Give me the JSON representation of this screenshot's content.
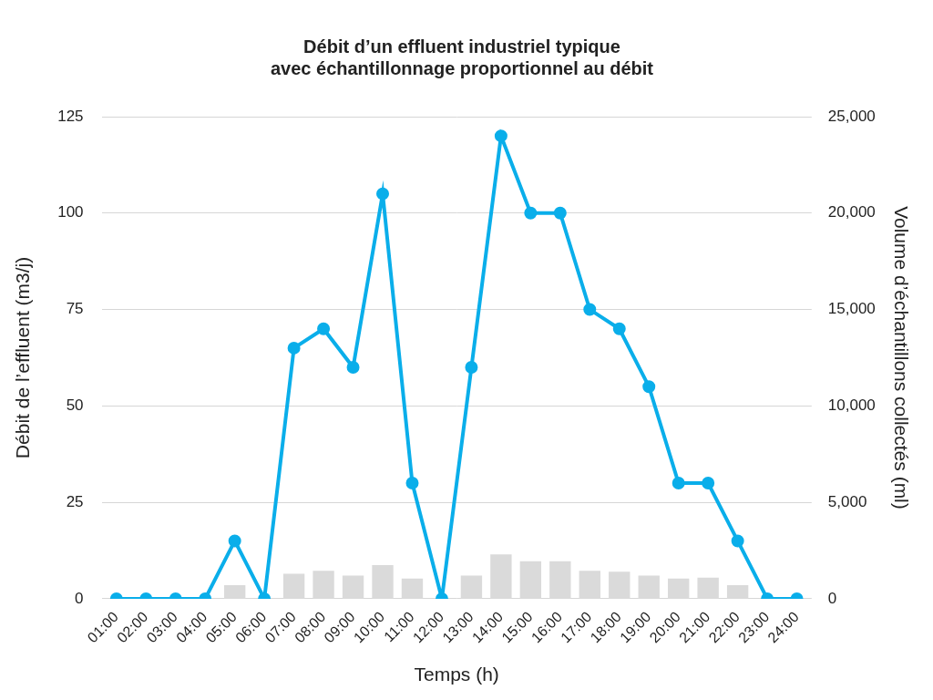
{
  "chart_data": {
    "type": "line",
    "title": [
      "Débit d’un effluent industriel typique",
      "avec échantillonnage proportionnel au débit"
    ],
    "x_label": "Temps (h)",
    "y_label": "Débit de l’effluent (m3/j)",
    "y2_label": "Volume d’échantillons collectés (ml)",
    "categories": [
      "01:00",
      "02:00",
      "03:00",
      "04:00",
      "05:00",
      "06:00",
      "07:00",
      "08:00",
      "09:00",
      "10:00",
      "11:00",
      "12:00",
      "13:00",
      "14:00",
      "15:00",
      "16:00",
      "17:00",
      "18:00",
      "19:00",
      "20:00",
      "21:00",
      "22:00",
      "23:00",
      "24:00"
    ],
    "series": [
      {
        "type": "line",
        "color": "#0aaeea",
        "marker": "circle",
        "line_style": "solid",
        "values": [
          0,
          0,
          0,
          0,
          15,
          0,
          65,
          70,
          60,
          105,
          30,
          0,
          60,
          120,
          100,
          100,
          75,
          70,
          55,
          30,
          30,
          15,
          0,
          0
        ]
      },
      {
        "type": "bar",
        "color": "#dadada",
        "axis": "y2",
        "values": [
          0,
          0,
          0,
          0,
          700,
          0,
          1300,
          1450,
          1200,
          1750,
          1050,
          0,
          1200,
          2300,
          1950,
          1950,
          1450,
          1400,
          1200,
          1050,
          1100,
          700,
          0,
          0
        ]
      }
    ],
    "ylim": [
      0,
      125
    ],
    "yticks": [
      0,
      25,
      50,
      75,
      100,
      125
    ],
    "y2lim": [
      0,
      25000
    ],
    "y2ticks": [
      0,
      5000,
      10000,
      15000,
      20000,
      25000
    ],
    "grid": true
  }
}
